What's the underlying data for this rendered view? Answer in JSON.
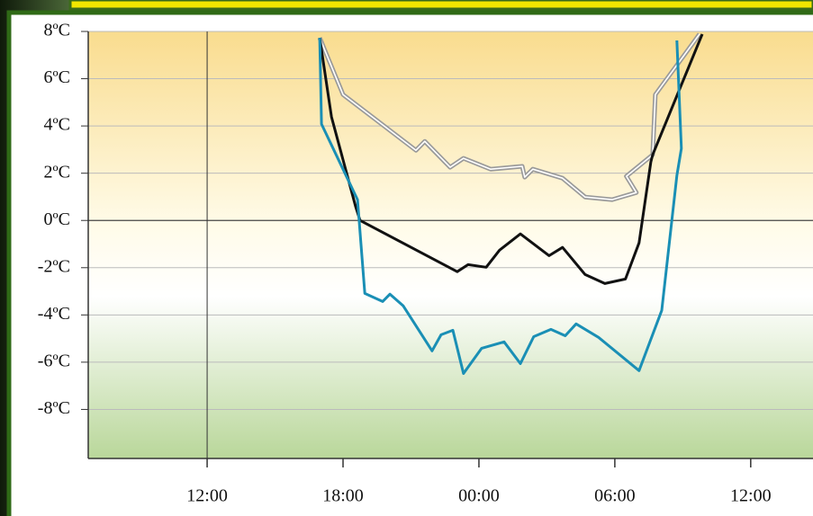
{
  "chart_data": {
    "type": "line",
    "xlim": [
      6.75,
      38.75
    ],
    "xticks": [
      {
        "value": 12,
        "label": "12:00"
      },
      {
        "value": 18,
        "label": "18:00"
      },
      {
        "value": 24,
        "label": "00:00"
      },
      {
        "value": 30,
        "label": "06:00"
      },
      {
        "value": 36,
        "label": "12:00"
      }
    ],
    "ylim": [
      -10,
      8
    ],
    "yticks": [
      {
        "value": 8,
        "label": "8ºC"
      },
      {
        "value": 6,
        "label": "6ºC"
      },
      {
        "value": 4,
        "label": "4ºC"
      },
      {
        "value": 2,
        "label": "2ºC"
      },
      {
        "value": 0,
        "label": "0ºC"
      },
      {
        "value": -2,
        "label": "-2ºC"
      },
      {
        "value": -4,
        "label": "-4ºC"
      },
      {
        "value": -6,
        "label": "-6ºC"
      },
      {
        "value": -8,
        "label": "-8ºC"
      }
    ],
    "grid": true,
    "vlines": [
      12
    ],
    "series": [
      {
        "color": "#9a9a9a",
        "x": [
          16.97,
          18.0,
          21.22,
          21.61,
          22.73,
          23.32,
          24.52,
          25.91,
          26.02,
          26.38,
          27.69,
          28.69,
          29.88,
          30.95,
          30.51,
          31.67,
          31.79,
          33.74
        ],
        "values": [
          7.73,
          5.33,
          2.97,
          3.35,
          2.25,
          2.63,
          2.17,
          2.29,
          1.83,
          2.17,
          1.79,
          0.99,
          0.88,
          1.18,
          1.87,
          2.78,
          5.33,
          7.89
        ]
      },
      {
        "color": "#111111",
        "x": [
          16.97,
          17.49,
          18.56,
          18.75,
          23.04,
          23.52,
          24.32,
          24.91,
          25.83,
          27.1,
          27.69,
          28.69,
          29.56,
          30.47,
          31.07,
          31.59,
          31.67,
          33.86
        ],
        "values": [
          7.73,
          4.38,
          0.57,
          0,
          -2.17,
          -1.87,
          -1.98,
          -1.26,
          -0.57,
          -1.49,
          -1.14,
          -2.29,
          -2.67,
          -2.48,
          -0.95,
          2.48,
          2.78,
          7.89
        ]
      },
      {
        "color": "#1a8fb5",
        "x": [
          16.97,
          17.05,
          18.64,
          18.96,
          19.75,
          20.07,
          20.66,
          21.93,
          22.33,
          22.85,
          23.32,
          24.12,
          25.11,
          25.83,
          26.42,
          27.18,
          27.81,
          28.29,
          29.28,
          31.07,
          32.07,
          32.74,
          32.94,
          32.74
        ],
        "values": [
          7.73,
          4.08,
          0.88,
          -3.09,
          -3.43,
          -3.12,
          -3.62,
          -5.52,
          -4.84,
          -4.65,
          -6.48,
          -5.41,
          -5.14,
          -6.06,
          -4.92,
          -4.61,
          -4.88,
          -4.38,
          -4.95,
          -6.36,
          -3.81,
          1.9,
          3.05,
          7.62
        ]
      }
    ]
  }
}
